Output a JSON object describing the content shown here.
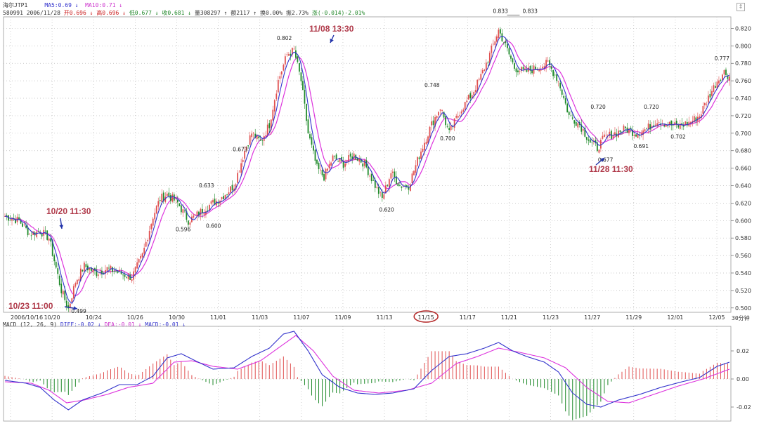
{
  "header": {
    "line1": {
      "name": "海尔JTP1",
      "ma5": "MA5:0.69 ↓",
      "ma10": "MA10:0.71 ↓"
    },
    "line2": {
      "code_date": "580991 2006/11/28",
      "open": "开0.696 ↓",
      "high": "高0.696 ↓",
      "low": "低0.677 ↓",
      "close": "收0.681 ↓",
      "volume": "量308297 ↑",
      "amount": "额2117 ↑",
      "turnover": "换0.00%",
      "amplitude": "振2.73%",
      "change": "涨(-0.014)-2.01%"
    },
    "macd_header": {
      "name": "MACD (12, 26, 9)",
      "diff": "DIFF:-0.02 ↓",
      "dea": "DEA:-0.01 ↓",
      "macd": "MACD:-0.01 ↓"
    },
    "period_label": "30分钟"
  },
  "chart_data": [
    {
      "type": "candlestick",
      "title": "",
      "x_ticks": [
        "2006/10/16",
        "10/20",
        "10/24",
        "10/26",
        "10/30",
        "11/01",
        "11/03",
        "11/07",
        "11/09",
        "11/13",
        "11/15",
        "11/17",
        "11/21",
        "11/23",
        "11/27",
        "11/29",
        "12/01",
        "12/05"
      ],
      "highlighted_tick": "11/15",
      "y_ticks": [
        0.5,
        0.52,
        0.54,
        0.56,
        0.58,
        0.6,
        0.62,
        0.64,
        0.66,
        0.68,
        0.7,
        0.72,
        0.74,
        0.76,
        0.78,
        0.8,
        0.82
      ],
      "ylim": [
        0.495,
        0.83
      ],
      "anchors": [
        [
          0,
          0.605
        ],
        [
          8,
          0.6
        ],
        [
          14,
          0.585
        ],
        [
          20,
          0.588
        ],
        [
          25,
          0.58
        ],
        [
          32,
          0.52
        ],
        [
          36,
          0.499
        ],
        [
          40,
          0.53
        ],
        [
          45,
          0.548
        ],
        [
          52,
          0.54
        ],
        [
          58,
          0.545
        ],
        [
          65,
          0.54
        ],
        [
          72,
          0.535
        ],
        [
          78,
          0.56
        ],
        [
          84,
          0.605
        ],
        [
          88,
          0.625
        ],
        [
          92,
          0.63
        ],
        [
          98,
          0.62
        ],
        [
          104,
          0.6
        ],
        [
          108,
          0.605
        ],
        [
          114,
          0.615
        ],
        [
          122,
          0.625
        ],
        [
          130,
          0.64
        ],
        [
          136,
          0.68
        ],
        [
          140,
          0.7
        ],
        [
          145,
          0.69
        ],
        [
          150,
          0.71
        ],
        [
          155,
          0.76
        ],
        [
          160,
          0.79
        ],
        [
          164,
          0.795
        ],
        [
          168,
          0.76
        ],
        [
          172,
          0.7
        ],
        [
          177,
          0.66
        ],
        [
          181,
          0.65
        ],
        [
          186,
          0.672
        ],
        [
          192,
          0.665
        ],
        [
          198,
          0.675
        ],
        [
          204,
          0.665
        ],
        [
          210,
          0.64
        ],
        [
          214,
          0.625
        ],
        [
          219,
          0.655
        ],
        [
          224,
          0.64
        ],
        [
          229,
          0.64
        ],
        [
          236,
          0.68
        ],
        [
          242,
          0.71
        ],
        [
          247,
          0.73
        ],
        [
          252,
          0.7
        ],
        [
          258,
          0.725
        ],
        [
          265,
          0.745
        ],
        [
          270,
          0.765
        ],
        [
          275,
          0.79
        ],
        [
          280,
          0.818
        ],
        [
          284,
          0.8
        ],
        [
          289,
          0.775
        ],
        [
          295,
          0.77
        ],
        [
          302,
          0.775
        ],
        [
          308,
          0.78
        ],
        [
          314,
          0.76
        ],
        [
          320,
          0.72
        ],
        [
          326,
          0.71
        ],
        [
          332,
          0.69
        ],
        [
          336,
          0.683
        ],
        [
          340,
          0.695
        ],
        [
          346,
          0.7
        ],
        [
          352,
          0.705
        ],
        [
          358,
          0.7
        ],
        [
          364,
          0.705
        ],
        [
          370,
          0.715
        ],
        [
          376,
          0.71
        ],
        [
          382,
          0.708
        ],
        [
          388,
          0.712
        ],
        [
          394,
          0.72
        ],
        [
          400,
          0.745
        ],
        [
          404,
          0.76
        ],
        [
          408,
          0.77
        ],
        [
          411,
          0.765
        ]
      ],
      "value_labels": [
        {
          "value": 0.499,
          "text": "0.499"
        },
        {
          "value": 0.596,
          "text": "0.596"
        },
        {
          "value": 0.6,
          "text": "0.600"
        },
        {
          "value": 0.633,
          "text": "0.633"
        },
        {
          "value": 0.673,
          "text": "0.673"
        },
        {
          "value": 0.802,
          "text": "0.802"
        },
        {
          "value": 0.62,
          "text": "0.620"
        },
        {
          "value": 0.748,
          "text": "0.748"
        },
        {
          "value": 0.7,
          "text": "0.700"
        },
        {
          "value": 0.833,
          "text": "0.833"
        },
        {
          "value": 0.833,
          "text": "0.833"
        },
        {
          "value": 0.72,
          "text": "0.720"
        },
        {
          "value": 0.677,
          "text": "0.677"
        },
        {
          "value": 0.691,
          "text": "0.691"
        },
        {
          "value": 0.72,
          "text": "0.720"
        },
        {
          "value": 0.702,
          "text": "0.702"
        },
        {
          "value": 0.777,
          "text": "0.777"
        }
      ],
      "annotations": [
        {
          "text": "10/20 11:30"
        },
        {
          "text": "10/23 11:00"
        },
        {
          "text": "11/08 13:30"
        },
        {
          "text": "11/28 11:30"
        }
      ],
      "series": [
        {
          "name": "MA5",
          "color": "#3333cc"
        },
        {
          "name": "MA10",
          "color": "#dd33dd"
        }
      ],
      "grid": true
    },
    {
      "type": "bar+line",
      "title": "",
      "y_ticks": [
        0.02,
        0.0,
        -0.02
      ],
      "ylim": [
        -0.03,
        0.035
      ],
      "diff_anchors": [
        [
          0,
          -0.001
        ],
        [
          12,
          -0.003
        ],
        [
          20,
          -0.006
        ],
        [
          28,
          -0.015
        ],
        [
          36,
          -0.022
        ],
        [
          44,
          -0.015
        ],
        [
          55,
          -0.01
        ],
        [
          65,
          -0.004
        ],
        [
          75,
          -0.004
        ],
        [
          84,
          0.002
        ],
        [
          92,
          0.015
        ],
        [
          100,
          0.018
        ],
        [
          108,
          0.013
        ],
        [
          118,
          0.007
        ],
        [
          130,
          0.008
        ],
        [
          140,
          0.016
        ],
        [
          150,
          0.022
        ],
        [
          158,
          0.032
        ],
        [
          164,
          0.034
        ],
        [
          172,
          0.02
        ],
        [
          180,
          0.003
        ],
        [
          190,
          -0.006
        ],
        [
          200,
          -0.01
        ],
        [
          210,
          -0.011
        ],
        [
          220,
          -0.01
        ],
        [
          232,
          -0.007
        ],
        [
          242,
          0.006
        ],
        [
          252,
          0.016
        ],
        [
          262,
          0.018
        ],
        [
          272,
          0.022
        ],
        [
          280,
          0.026
        ],
        [
          288,
          0.02
        ],
        [
          296,
          0.016
        ],
        [
          306,
          0.012
        ],
        [
          314,
          0.005
        ],
        [
          322,
          -0.01
        ],
        [
          330,
          -0.018
        ],
        [
          338,
          -0.02
        ],
        [
          348,
          -0.015
        ],
        [
          360,
          -0.011
        ],
        [
          372,
          -0.006
        ],
        [
          384,
          -0.002
        ],
        [
          394,
          0.001
        ],
        [
          404,
          0.009
        ],
        [
          411,
          0.012
        ]
      ],
      "dea_anchors": [
        [
          0,
          -0.002
        ],
        [
          15,
          -0.003
        ],
        [
          25,
          -0.008
        ],
        [
          35,
          -0.017
        ],
        [
          45,
          -0.015
        ],
        [
          58,
          -0.011
        ],
        [
          70,
          -0.006
        ],
        [
          84,
          -0.003
        ],
        [
          96,
          0.012
        ],
        [
          106,
          0.013
        ],
        [
          118,
          0.009
        ],
        [
          132,
          0.007
        ],
        [
          145,
          0.013
        ],
        [
          155,
          0.022
        ],
        [
          165,
          0.031
        ],
        [
          175,
          0.02
        ],
        [
          186,
          0.002
        ],
        [
          198,
          -0.008
        ],
        [
          212,
          -0.01
        ],
        [
          228,
          -0.008
        ],
        [
          242,
          -0.003
        ],
        [
          256,
          0.011
        ],
        [
          268,
          0.016
        ],
        [
          280,
          0.022
        ],
        [
          292,
          0.019
        ],
        [
          306,
          0.015
        ],
        [
          318,
          0.008
        ],
        [
          330,
          -0.006
        ],
        [
          342,
          -0.016
        ],
        [
          354,
          -0.017
        ],
        [
          368,
          -0.011
        ],
        [
          382,
          -0.005
        ],
        [
          396,
          0.0
        ],
        [
          411,
          0.007
        ]
      ],
      "series": [
        {
          "name": "DIFF",
          "color": "#3333cc"
        },
        {
          "name": "DEA",
          "color": "#dd33dd"
        },
        {
          "name": "MACD",
          "color": "#2a9a2a"
        }
      ]
    }
  ]
}
